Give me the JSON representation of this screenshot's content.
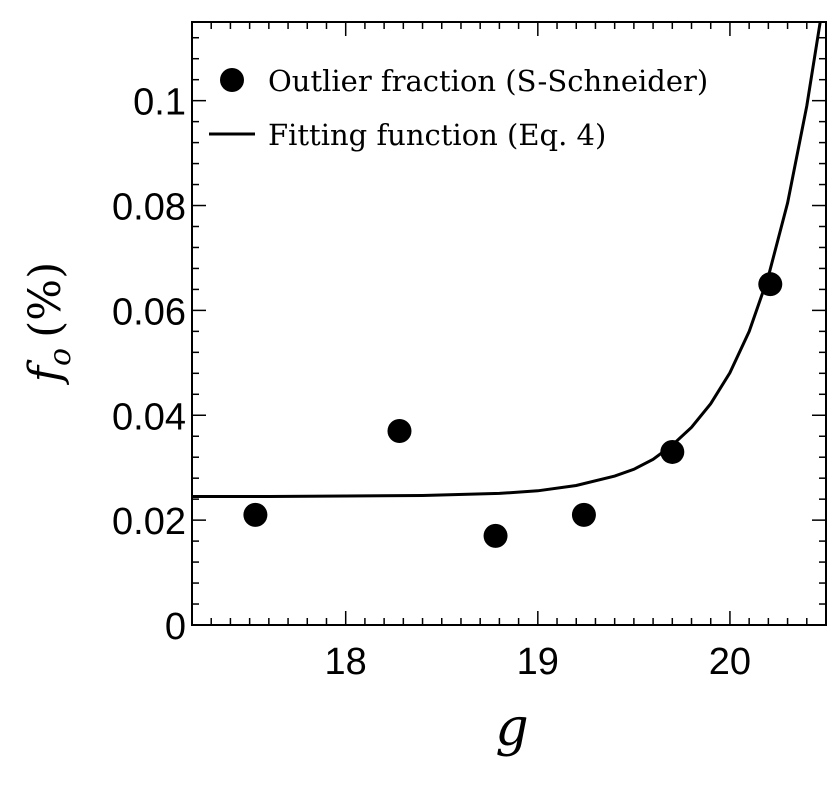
{
  "chart_data": {
    "type": "scatter",
    "xlabel": "g",
    "ylabel_symbol": "f",
    "ylabel_subscript": "o",
    "ylabel_unit": "(%)",
    "xlim": [
      17.2,
      20.5
    ],
    "ylim": [
      0,
      0.115
    ],
    "x_ticks": [
      18,
      19,
      20
    ],
    "x_tick_labels": [
      "18",
      "19",
      "20"
    ],
    "y_ticks": [
      0,
      0.02,
      0.04,
      0.06,
      0.08,
      0.1
    ],
    "y_tick_labels": [
      "0",
      "0.02",
      "0.04",
      "0.06",
      "0.08",
      "0.1"
    ],
    "x_minor_step": 0.1,
    "y_minor_step": 0.004,
    "grid": false,
    "legend_position": "top-left",
    "series": [
      {
        "name": "Outlier fraction (S-Schneider)",
        "kind": "points",
        "color": "#000000",
        "x": [
          17.53,
          18.28,
          18.78,
          19.24,
          19.7,
          20.21
        ],
        "y": [
          0.021,
          0.037,
          0.017,
          0.021,
          0.033,
          0.065
        ]
      },
      {
        "name": "Fitting function (Eq. 4)",
        "kind": "line",
        "color": "#000000",
        "x": [
          17.2,
          17.6,
          18.0,
          18.4,
          18.8,
          19.0,
          19.2,
          19.4,
          19.5,
          19.6,
          19.7,
          19.8,
          19.9,
          20.0,
          20.1,
          20.2,
          20.3,
          20.4,
          20.47
        ],
        "y": [
          0.0245,
          0.0245,
          0.0246,
          0.0247,
          0.0251,
          0.0256,
          0.0266,
          0.0284,
          0.0297,
          0.0316,
          0.0343,
          0.0377,
          0.0422,
          0.0481,
          0.056,
          0.0665,
          0.0805,
          0.099,
          0.115
        ]
      }
    ]
  }
}
